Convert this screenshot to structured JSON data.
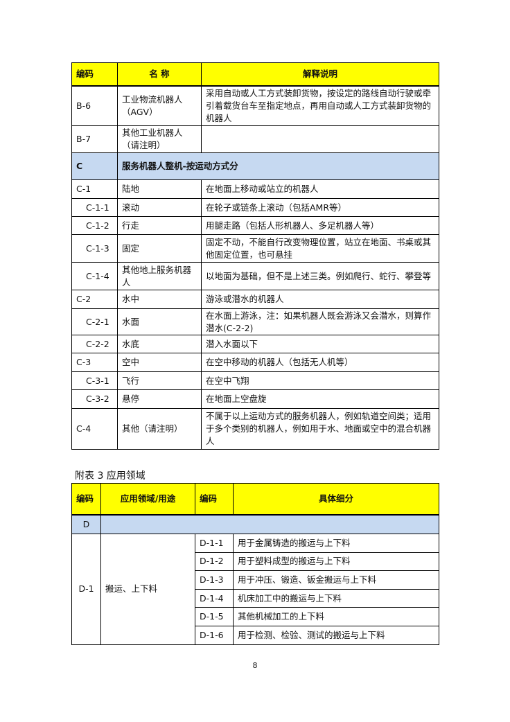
{
  "table1": {
    "headers": [
      "编码",
      "名 称",
      "解释说明"
    ],
    "rows": [
      {
        "code": "B-6",
        "name": "工业物流机器人（AGV）",
        "desc": "采用自动或人工方式装卸货物，按设定的路线自动行驶或牵引着载货台车至指定地点，再用自动或人工方式装卸货物的机器人"
      },
      {
        "code": "B-7",
        "name": "其他工业机器人（请注明）",
        "desc": ""
      },
      {
        "code": "C",
        "name": "服务机器人整机-按运动方式分",
        "desc": "",
        "category": true
      },
      {
        "code": "C-1",
        "name": "陆地",
        "desc": "在地面上移动或站立的机器人"
      },
      {
        "code": "C-1-1",
        "name": "滚动",
        "desc": "在轮子或链条上滚动（包括AMR等）",
        "sub": true
      },
      {
        "code": "C-1-2",
        "name": "行走",
        "desc": "用腿走路（包括人形机器人、多足机器人等）",
        "sub": true
      },
      {
        "code": "C-1-3",
        "name": "固定",
        "desc": "固定不动，不能自行改变物理位置，站立在地面、书桌或其他固定位置，也可悬挂",
        "sub": true
      },
      {
        "code": "C-1-4",
        "name": "其他地上服务机器人",
        "desc": "以地面为基础，但不是上述三类。例如爬行、蛇行、攀登等",
        "sub": true
      },
      {
        "code": "C-2",
        "name": "水中",
        "desc": "游泳或潜水的机器人"
      },
      {
        "code": "C-2-1",
        "name": "水面",
        "desc": "在水面上游泳，注：如果机器人既会游泳又会潜水，则算作潜水(C-2-2)",
        "sub": true
      },
      {
        "code": "C-2-2",
        "name": "水底",
        "desc": "潜入水面以下",
        "sub": true
      },
      {
        "code": "C-3",
        "name": "空中",
        "desc": "在空中移动的机器人（包括无人机等）"
      },
      {
        "code": "C-3-1",
        "name": "飞行",
        "desc": "在空中飞翔",
        "sub": true
      },
      {
        "code": "C-3-2",
        "name": "悬停",
        "desc": "在地面上空盘旋",
        "sub": true
      },
      {
        "code": "C-4",
        "name": "其他（请注明）",
        "desc": "不属于以上运动方式的服务机器人，例如轨道空间类；适用于多个类别的机器人，例如用于水、地面或空中的混合机器人"
      }
    ]
  },
  "caption": "附表 3 应用领域",
  "table2": {
    "headers": [
      "编码",
      "应用领域/用途",
      "编码",
      "具体细分"
    ],
    "category": "D",
    "group": {
      "code": "D-1",
      "name": "搬运、上下料"
    },
    "rows": [
      {
        "code": "D-1-1",
        "desc": "用于金属铸造的搬运与上下料"
      },
      {
        "code": "D-1-2",
        "desc": "用于塑料成型的搬运与上下料"
      },
      {
        "code": "D-1-3",
        "desc": "用于冲压、锻造、钣金搬运与上下料"
      },
      {
        "code": "D-1-4",
        "desc": "机床加工中的搬运与上下料"
      },
      {
        "code": "D-1-5",
        "desc": "其他机械加工的上下料"
      },
      {
        "code": "D-1-6",
        "desc": "用于检测、检验、测试的搬运与上下料"
      }
    ]
  },
  "page_number": "8"
}
